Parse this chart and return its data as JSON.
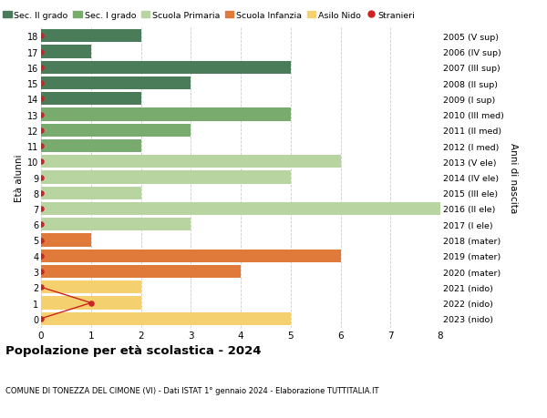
{
  "ages": [
    18,
    17,
    16,
    15,
    14,
    13,
    12,
    11,
    10,
    9,
    8,
    7,
    6,
    5,
    4,
    3,
    2,
    1,
    0
  ],
  "years": [
    "2005 (V sup)",
    "2006 (IV sup)",
    "2007 (III sup)",
    "2008 (II sup)",
    "2009 (I sup)",
    "2010 (III med)",
    "2011 (II med)",
    "2012 (I med)",
    "2013 (V ele)",
    "2014 (IV ele)",
    "2015 (III ele)",
    "2016 (II ele)",
    "2017 (I ele)",
    "2018 (mater)",
    "2019 (mater)",
    "2020 (mater)",
    "2021 (nido)",
    "2022 (nido)",
    "2023 (nido)"
  ],
  "bar_values": [
    2,
    1,
    5,
    3,
    2,
    5,
    3,
    2,
    6,
    5,
    2,
    8,
    3,
    1,
    6,
    4,
    2,
    2,
    5
  ],
  "bar_colors": [
    "#4a7c59",
    "#4a7c59",
    "#4a7c59",
    "#4a7c59",
    "#4a7c59",
    "#7aab6e",
    "#7aab6e",
    "#7aab6e",
    "#b8d4a0",
    "#b8d4a0",
    "#b8d4a0",
    "#b8d4a0",
    "#b8d4a0",
    "#e07a3a",
    "#e07a3a",
    "#e07a3a",
    "#f5d06e",
    "#f5d06e",
    "#f5d06e"
  ],
  "stranieri_line_ages": [
    2,
    1,
    0
  ],
  "stranieri_line_values": [
    0,
    1,
    0
  ],
  "stranieri_all_ages": [
    18,
    17,
    16,
    15,
    14,
    13,
    12,
    11,
    10,
    9,
    8,
    7,
    6,
    5,
    4,
    3,
    2,
    0
  ],
  "stranieri_nido_ages": [
    2,
    1,
    0
  ],
  "stranieri_nido_vals": [
    0,
    1,
    0
  ],
  "legend_labels": [
    "Sec. II grado",
    "Sec. I grado",
    "Scuola Primaria",
    "Scuola Infanzia",
    "Asilo Nido",
    "Stranieri"
  ],
  "legend_colors": [
    "#4a7c59",
    "#7aab6e",
    "#b8d4a0",
    "#e07a3a",
    "#f5d06e",
    "#cc2222"
  ],
  "title": "Popolazione per età scolastica - 2024",
  "subtitle": "COMUNE DI TONEZZA DEL CIMONE (VI) - Dati ISTAT 1° gennaio 2024 - Elaborazione TUTTITALIA.IT",
  "ylabel_left": "Età alunni",
  "ylabel_right": "Anni di nascita",
  "xlim": [
    0,
    8
  ],
  "background_color": "#ffffff",
  "grid_color": "#cccccc",
  "bar_height": 0.82,
  "stranieri_color": "#cc2222",
  "stranieri_dot_size": 22
}
